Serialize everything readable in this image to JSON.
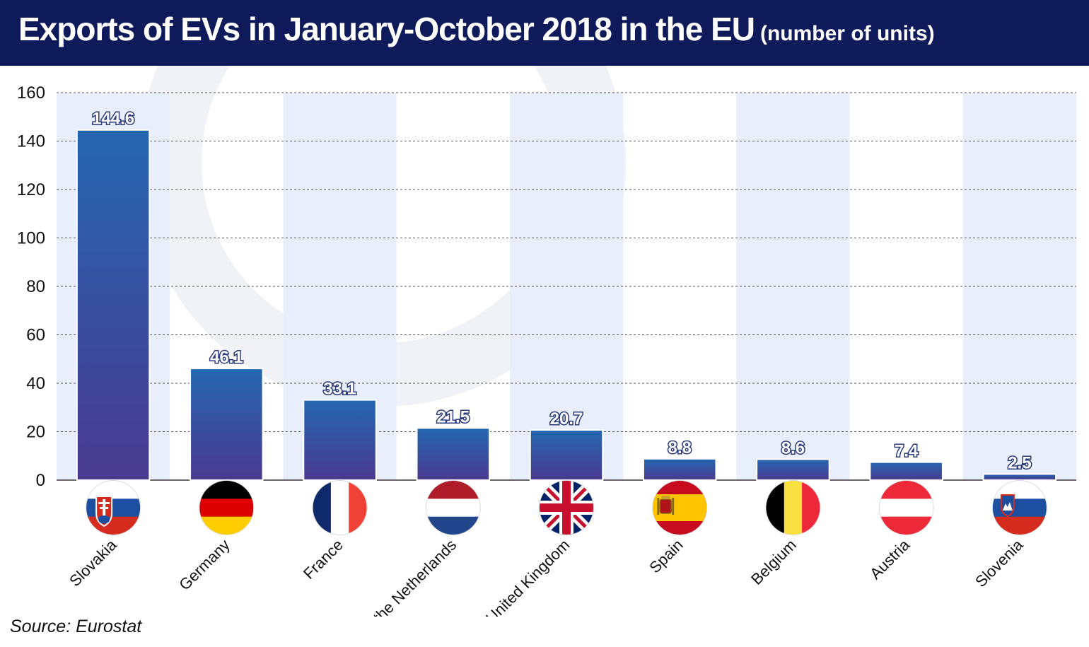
{
  "header": {
    "title": "Exports of EVs in January-October 2018 in the EU",
    "subtitle": "(number of units)"
  },
  "source": "Source: Eurostat",
  "colors": {
    "header_bg": "#0f1a5a",
    "bar_top": "#2566b0",
    "bar_bottom": "#4a3a8f",
    "band": "#e8eefb",
    "grid": "#555555"
  },
  "chart_data": {
    "type": "bar",
    "categories": [
      "Slovakia",
      "Germany",
      "France",
      "the Netherlands",
      "United Kingdom",
      "Spain",
      "Belgium",
      "Austria",
      "Slovenia"
    ],
    "values": [
      144.6,
      46.1,
      33.1,
      21.5,
      20.7,
      8.8,
      8.6,
      7.4,
      2.5
    ],
    "value_labels": [
      "144.6",
      "46.1",
      "33.1",
      "21.5",
      "20.7",
      "8.8",
      "8.6",
      "7.4",
      "2.5"
    ],
    "flags": [
      "slovakia-flag-icon",
      "germany-flag-icon",
      "france-flag-icon",
      "netherlands-flag-icon",
      "united-kingdom-flag-icon",
      "spain-flag-icon",
      "belgium-flag-icon",
      "austria-flag-icon",
      "slovenia-flag-icon"
    ],
    "ylim": [
      0,
      160
    ],
    "yticks": [
      0,
      20,
      40,
      60,
      80,
      100,
      120,
      140,
      160
    ],
    "grid": true,
    "xlabel": "",
    "ylabel": ""
  }
}
